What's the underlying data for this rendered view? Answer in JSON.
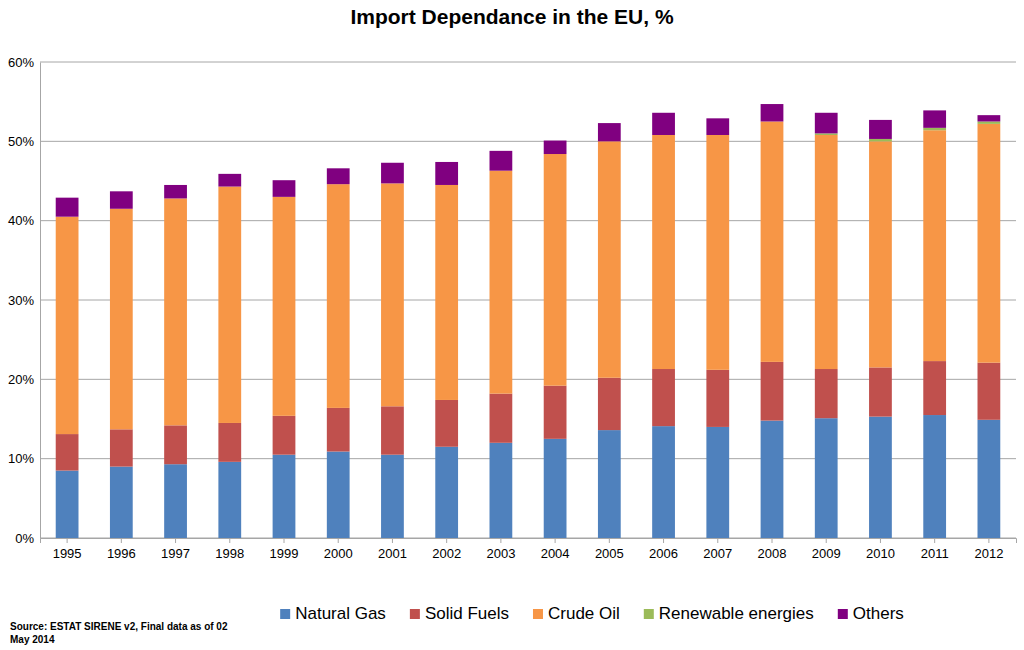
{
  "chart_data": {
    "type": "bar",
    "stacked": true,
    "grid": true,
    "legend": "bottom",
    "title": "Import Dependance in the EU, %",
    "annotations": [
      "Source: ESTAT SIRENE v2, Final data as of 02",
      "May 2014"
    ],
    "categories": [
      "1995",
      "1996",
      "1997",
      "1998",
      "1999",
      "2000",
      "2001",
      "2002",
      "2003",
      "2004",
      "2005",
      "2006",
      "2007",
      "2008",
      "2009",
      "2010",
      "2011",
      "2012"
    ],
    "ylim": [
      0,
      60
    ],
    "yticks": [
      {
        "value": 0,
        "label": "0%"
      },
      {
        "value": 10,
        "label": "10%"
      },
      {
        "value": 20,
        "label": "20%"
      },
      {
        "value": 30,
        "label": "30%"
      },
      {
        "value": 40,
        "label": "40%"
      },
      {
        "value": 50,
        "label": "50%"
      },
      {
        "value": 60,
        "label": "60%"
      }
    ],
    "series": [
      {
        "name": "Natural Gas",
        "color": "#4f81bd",
        "values": [
          8.5,
          9.0,
          9.3,
          9.6,
          10.5,
          10.9,
          10.5,
          11.5,
          12.0,
          12.5,
          13.6,
          14.1,
          14.0,
          14.8,
          15.1,
          15.3,
          15.5,
          14.9
        ]
      },
      {
        "name": "Solid Fuels",
        "color": "#c0504d",
        "values": [
          4.6,
          4.7,
          4.9,
          4.9,
          4.9,
          5.5,
          6.1,
          5.9,
          6.2,
          6.7,
          6.6,
          7.2,
          7.2,
          7.4,
          6.2,
          6.2,
          6.8,
          7.2
        ]
      },
      {
        "name": "Crude Oil",
        "color": "#f79646",
        "values": [
          27.4,
          27.8,
          28.6,
          29.8,
          27.6,
          28.2,
          28.1,
          27.1,
          28.1,
          29.2,
          29.8,
          29.5,
          29.6,
          30.3,
          29.5,
          28.5,
          29.1,
          30.1
        ]
      },
      {
        "name": "Renewable energies",
        "color": "#9bbb59",
        "values": [
          0,
          0,
          0,
          0,
          0,
          0,
          0,
          0,
          0,
          0,
          0,
          0,
          0,
          0,
          0.2,
          0.3,
          0.3,
          0.3
        ]
      },
      {
        "name": "Others",
        "color": "#800080",
        "values": [
          2.4,
          2.2,
          1.7,
          1.6,
          2.1,
          2.0,
          2.6,
          2.9,
          2.5,
          1.7,
          2.3,
          2.8,
          2.1,
          2.2,
          2.6,
          2.4,
          2.2,
          0.8
        ]
      }
    ]
  }
}
